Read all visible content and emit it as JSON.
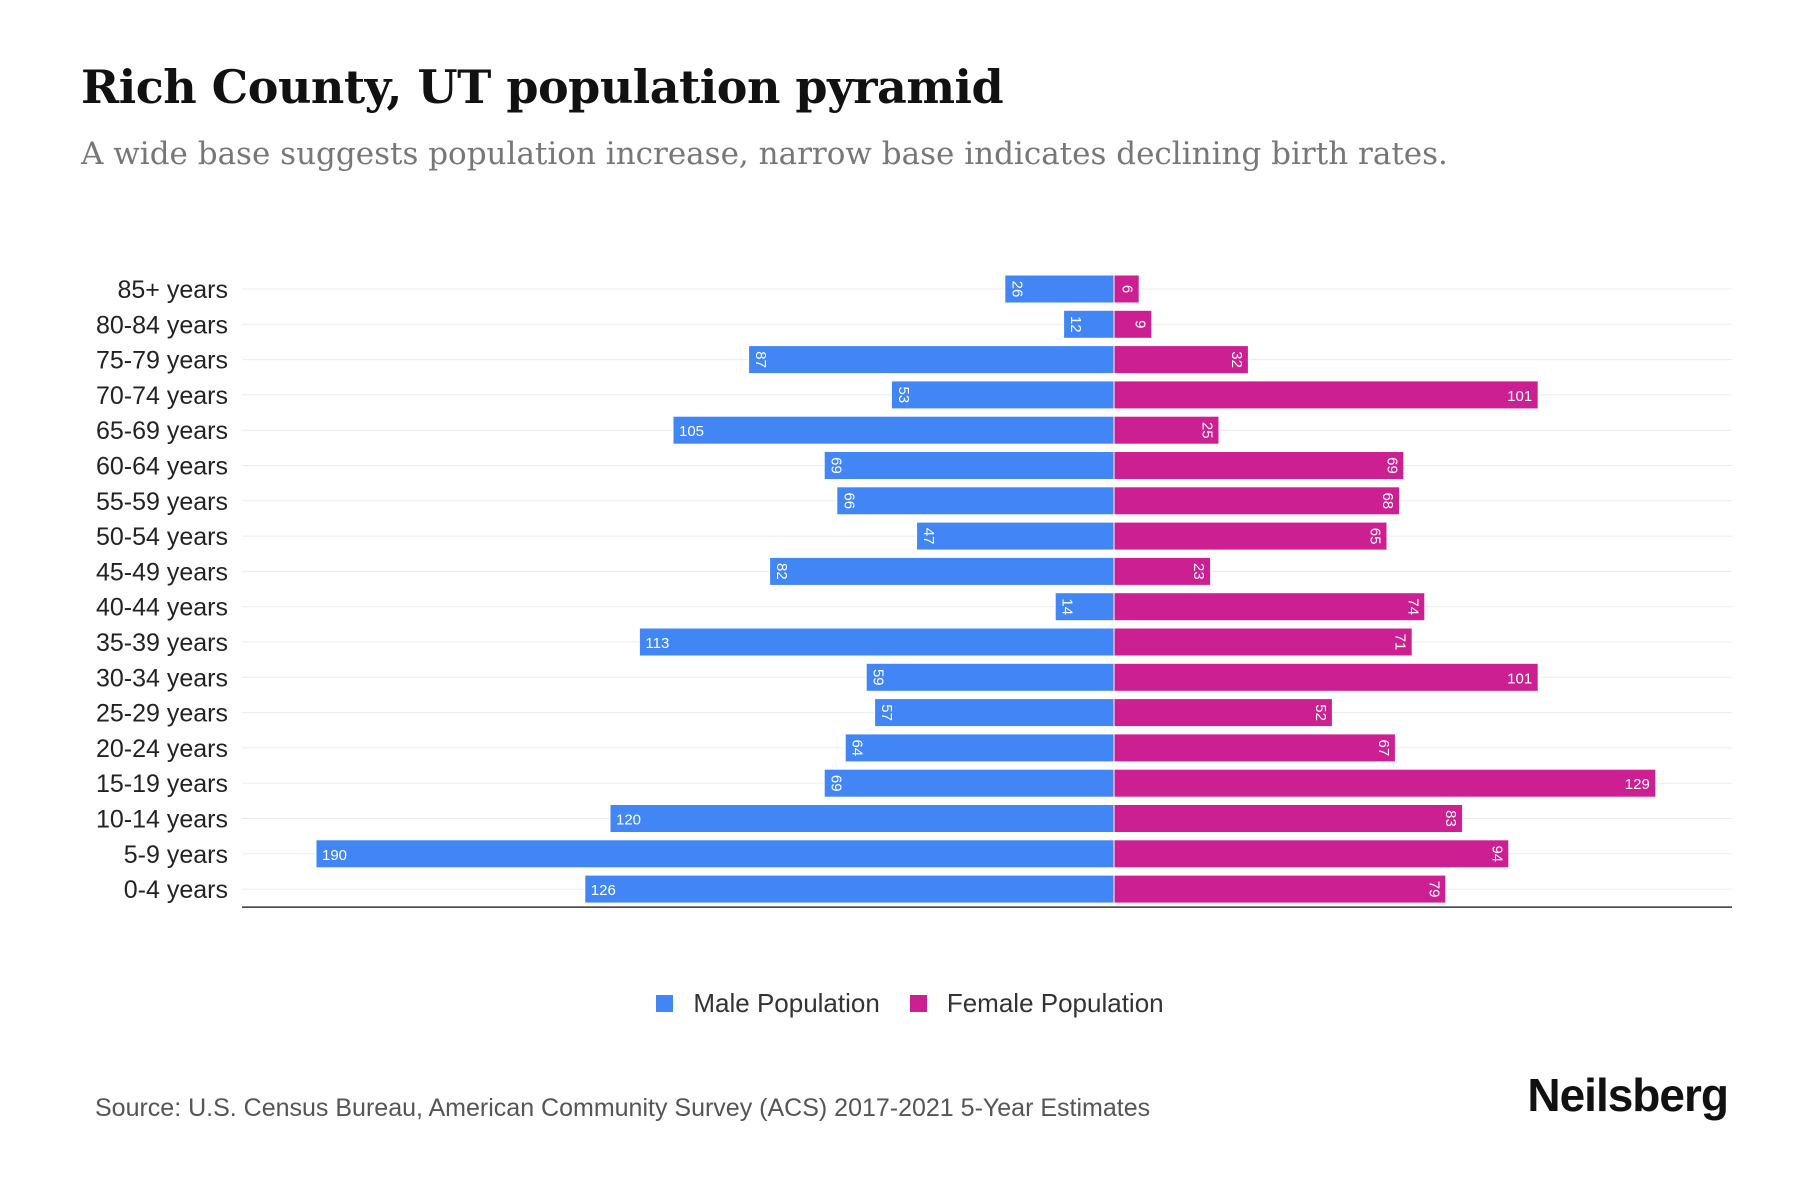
{
  "chart_data": {
    "type": "bar",
    "orientation": "horizontal-pyramid",
    "title": "Rich County, UT population pyramid",
    "subtitle": "A wide base suggests population increase, narrow base indicates declining birth rates.",
    "categories": [
      "85+ years",
      "80-84 years",
      "75-79 years",
      "70-74 years",
      "65-69 years",
      "60-64 years",
      "55-59 years",
      "50-54 years",
      "45-49 years",
      "40-44 years",
      "35-39 years",
      "30-34 years",
      "25-29 years",
      "20-24 years",
      "15-19 years",
      "10-14 years",
      "5-9 years",
      "0-4 years"
    ],
    "series": [
      {
        "name": "Male Population",
        "color": "#4285f4",
        "values": [
          26,
          12,
          87,
          53,
          105,
          69,
          66,
          47,
          82,
          14,
          113,
          59,
          57,
          64,
          69,
          120,
          190,
          126
        ]
      },
      {
        "name": "Female Population",
        "color": "#cc1f91",
        "values": [
          6,
          9,
          32,
          101,
          25,
          69,
          68,
          65,
          23,
          74,
          71,
          101,
          52,
          67,
          129,
          83,
          94,
          79
        ]
      }
    ],
    "xlim": [
      -190,
      190
    ],
    "grid": true,
    "legend_position": "bottom-center"
  },
  "source": "Source: U.S. Census Bureau, American Community Survey (ACS) 2017-2021 5-Year Estimates",
  "logo": "Neilsberg"
}
